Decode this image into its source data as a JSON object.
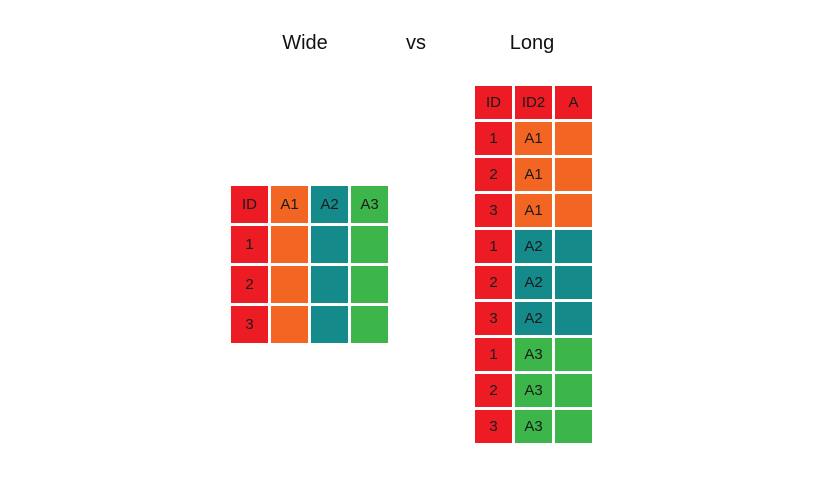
{
  "titles": {
    "wide": "Wide",
    "vs": "vs",
    "long": "Long"
  },
  "colors": {
    "ID": "#ed1c24",
    "A1": "#f26522",
    "A2": "#158a8a",
    "A3": "#3cb54a"
  },
  "wide_table": {
    "header": [
      "ID",
      "A1",
      "A2",
      "A3"
    ],
    "rows": [
      [
        "1",
        "",
        "",
        ""
      ],
      [
        "2",
        "",
        "",
        ""
      ],
      [
        "3",
        "",
        "",
        ""
      ]
    ]
  },
  "long_table": {
    "header": [
      "ID",
      "ID2",
      "A"
    ],
    "rows": [
      [
        "1",
        "A1",
        ""
      ],
      [
        "2",
        "A1",
        ""
      ],
      [
        "3",
        "A1",
        ""
      ],
      [
        "1",
        "A2",
        ""
      ],
      [
        "2",
        "A2",
        ""
      ],
      [
        "3",
        "A2",
        ""
      ],
      [
        "1",
        "A3",
        ""
      ],
      [
        "2",
        "A3",
        ""
      ],
      [
        "3",
        "A3",
        ""
      ]
    ]
  }
}
